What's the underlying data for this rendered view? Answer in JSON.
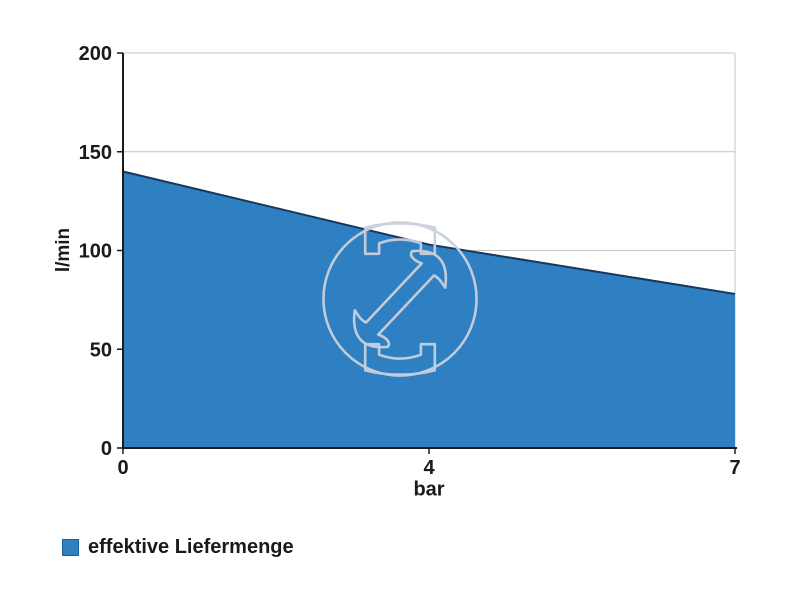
{
  "chart_data": {
    "type": "area",
    "x": [
      0,
      4,
      7
    ],
    "xlabel": "bar",
    "ylabel": "l/min",
    "ylim": [
      0,
      200
    ],
    "yticks": [
      0,
      50,
      100,
      150,
      200
    ],
    "series": [
      {
        "name": "effektive Liefermenge",
        "values": [
          140,
          103,
          78
        ],
        "fill_color": "#2E80C2",
        "line_color": "#17375E"
      }
    ],
    "grid": "horizontal",
    "legend_position": "bottom-left"
  },
  "legend": {
    "label": "effektive Liefermenge",
    "swatch_color": "#2E80C2",
    "swatch_border_color": "#1D5E95"
  },
  "watermark": {
    "name": "circular tool-brand logo watermark",
    "color": "#C9D0DB"
  },
  "colors": {
    "background": "#FFFFFF",
    "grid": "#C4C4C4",
    "axis": "#1A1A1A",
    "text": "#1A1A1A"
  }
}
